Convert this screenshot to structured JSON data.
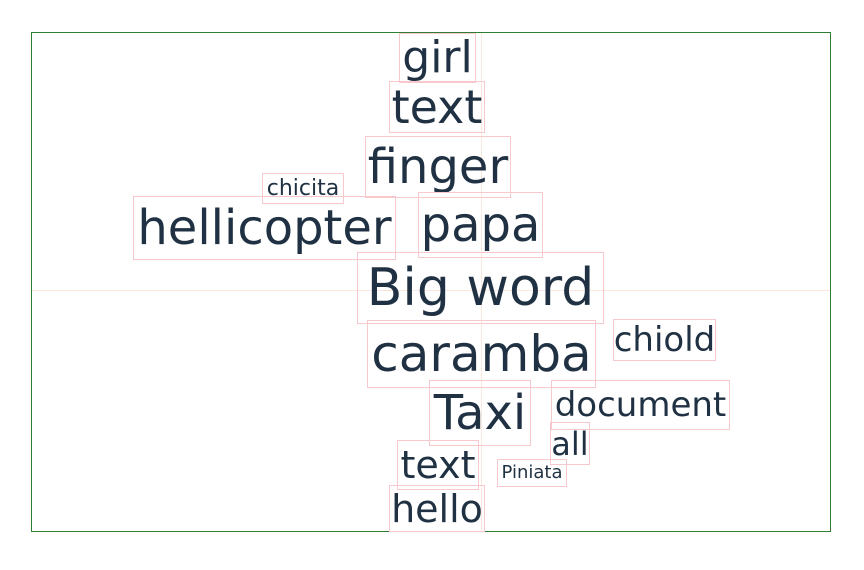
{
  "colors": {
    "text": "#1f3142",
    "frame": "#2e7d32",
    "word_box": "#f7c9cc",
    "guide": "#fbe7dc"
  },
  "words": {
    "girl": "girl",
    "text_top": "text",
    "finger": "finger",
    "chicita": "chicita",
    "hellicopter": "hellicopter",
    "papa": "papa",
    "big_word": "Big word",
    "caramba": "caramba",
    "chiold": "chiold",
    "taxi": "Taxi",
    "document": "document",
    "all": "all",
    "text_bottom": "text",
    "piniata": "Piniata",
    "hello": "hello"
  }
}
